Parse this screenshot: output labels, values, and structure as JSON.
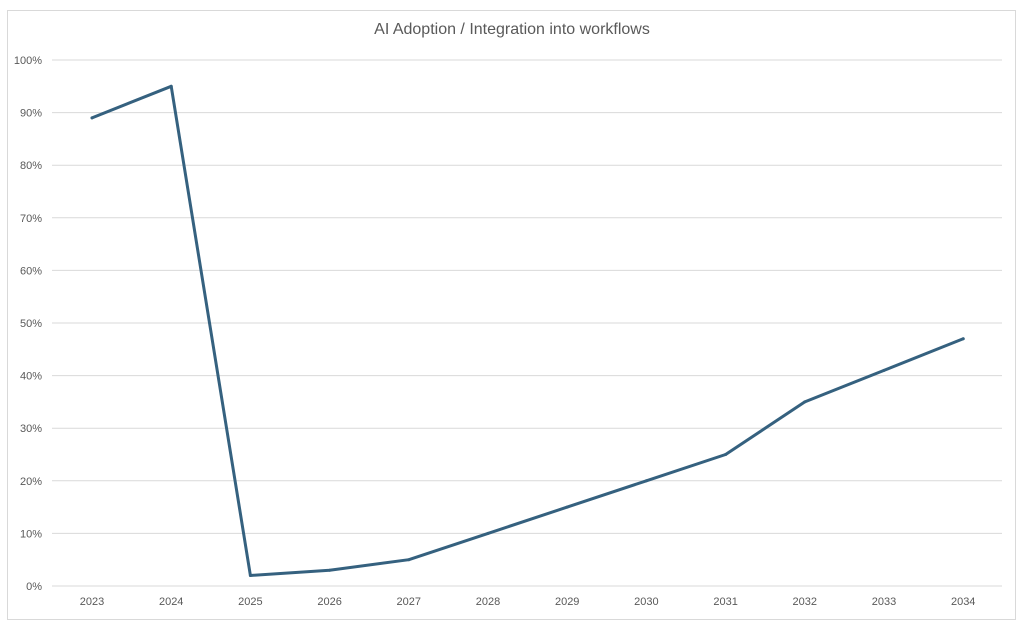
{
  "chart_data": {
    "type": "line",
    "title": "AI Adoption / Integration into workflows",
    "xlabel": "",
    "ylabel": "",
    "categories": [
      "2023",
      "2024",
      "2025",
      "2026",
      "2027",
      "2028",
      "2029",
      "2030",
      "2031",
      "2032",
      "2033",
      "2034"
    ],
    "series": [
      {
        "values": [
          0.89,
          0.95,
          0.02,
          0.03,
          0.05,
          0.1,
          0.15,
          0.2,
          0.25,
          0.35,
          0.41,
          0.47
        ],
        "color": "#35617f"
      }
    ],
    "ylim": [
      0,
      1
    ],
    "yticks": [
      "0%",
      "10%",
      "20%",
      "30%",
      "40%",
      "50%",
      "60%",
      "70%",
      "80%",
      "90%",
      "100%"
    ],
    "grid": true,
    "legend": "none"
  }
}
